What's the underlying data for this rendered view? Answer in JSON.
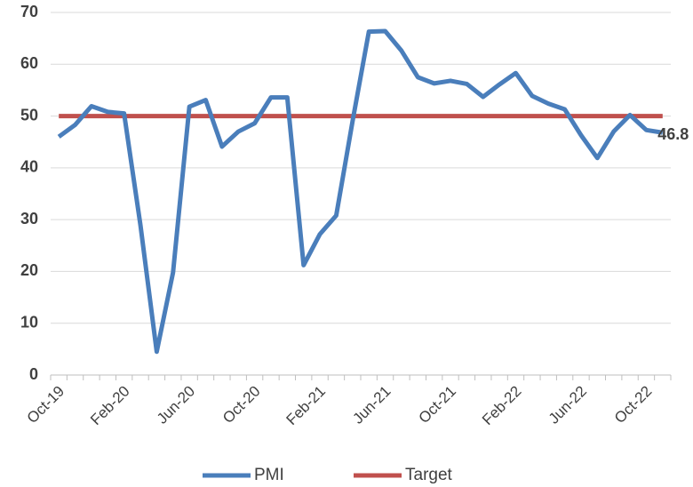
{
  "chart_data": {
    "type": "line",
    "categories": [
      "Oct-19",
      null,
      null,
      null,
      "Feb-20",
      null,
      null,
      null,
      "Jun-20",
      null,
      null,
      null,
      "Oct-20",
      null,
      null,
      null,
      "Feb-21",
      null,
      null,
      null,
      "Jun-21",
      null,
      null,
      null,
      "Oct-21",
      null,
      null,
      null,
      "Feb-22",
      null,
      null,
      null,
      "Jun-22",
      null,
      null,
      null,
      "Oct-22",
      null
    ],
    "series": [
      {
        "name": "PMI",
        "color": "#4a7ebb",
        "values": [
          46,
          48.3,
          51.9,
          50.8,
          50.5,
          29,
          4.5,
          19.8,
          51.8,
          53.1,
          44.1,
          47,
          48.6,
          53.6,
          53.6,
          21.2,
          27.2,
          30.8,
          49,
          66.3,
          66.4,
          62.6,
          57.5,
          56.3,
          56.8,
          56.2,
          53.7,
          56.1,
          58.3,
          53.9,
          52.4,
          51.3,
          46.3,
          41.9,
          47,
          50.2,
          47.3,
          46.8
        ]
      },
      {
        "name": "Target",
        "color": "#c0504d",
        "values": [
          50,
          50,
          50,
          50,
          50,
          50,
          50,
          50,
          50,
          50,
          50,
          50,
          50,
          50,
          50,
          50,
          50,
          50,
          50,
          50,
          50,
          50,
          50,
          50,
          50,
          50,
          50,
          50,
          50,
          50,
          50,
          50,
          50,
          50,
          50,
          50,
          50,
          50
        ]
      }
    ],
    "ylim": [
      0,
      70
    ],
    "yticks": [
      0,
      10,
      20,
      30,
      40,
      50,
      60,
      70
    ],
    "grid": true,
    "legend": "bottom"
  }
}
